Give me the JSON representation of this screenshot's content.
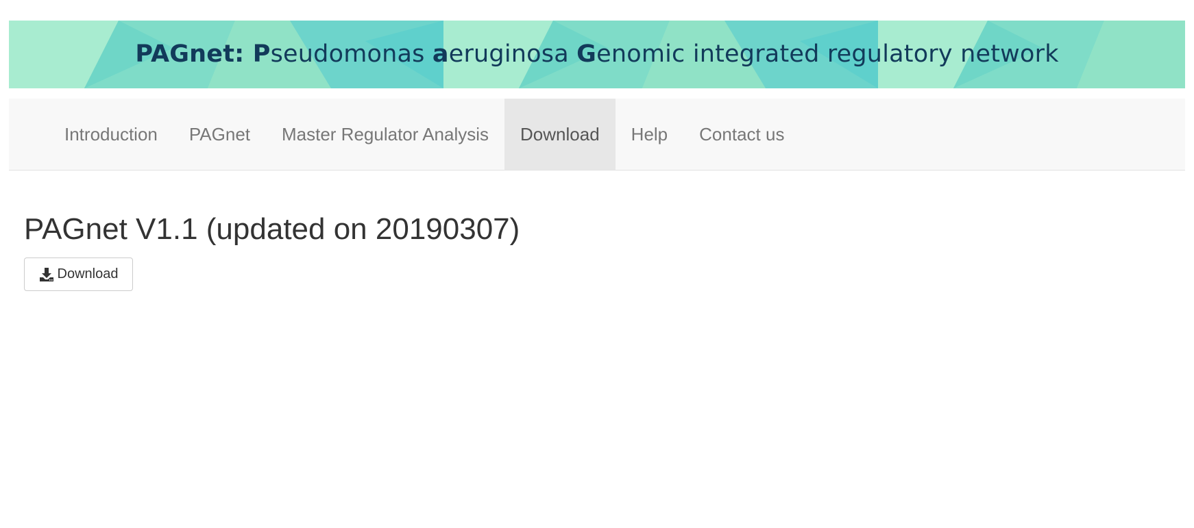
{
  "banner": {
    "title_parts": [
      {
        "text": "PAGnet: ",
        "bold": true
      },
      {
        "text": "P",
        "bold": true
      },
      {
        "text": "seudomonas ",
        "bold": false
      },
      {
        "text": "a",
        "bold": true
      },
      {
        "text": "eruginosa ",
        "bold": false
      },
      {
        "text": "G",
        "bold": true
      },
      {
        "text": "enomic integrated regulatory network",
        "bold": false
      }
    ],
    "colors": {
      "base": "#9ee8c9",
      "accent": "#5fd3cf",
      "text": "#123a5a"
    }
  },
  "nav": {
    "items": [
      {
        "label": "Introduction",
        "active": false
      },
      {
        "label": "PAGnet",
        "active": false
      },
      {
        "label": "Master Regulator Analysis",
        "active": false
      },
      {
        "label": "Download",
        "active": true
      },
      {
        "label": "Help",
        "active": false
      },
      {
        "label": "Contact us",
        "active": false
      }
    ]
  },
  "main": {
    "title": "PAGnet V1.1 (updated on 20190307)",
    "download_button": {
      "label": "Download",
      "icon": "download-icon"
    }
  }
}
